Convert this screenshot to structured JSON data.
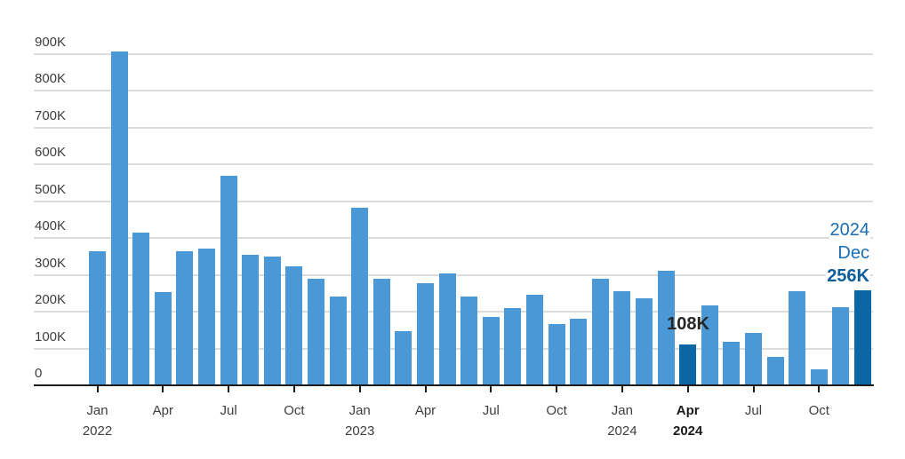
{
  "chart_data": {
    "type": "bar",
    "title": "",
    "unit": "thousands (K)",
    "grid": true,
    "ylim": [
      0,
      900
    ],
    "categories": [
      "Jan 2022",
      "Feb 2022",
      "Mar 2022",
      "Apr 2022",
      "May 2022",
      "Jun 2022",
      "Jul 2022",
      "Aug 2022",
      "Sep 2022",
      "Oct 2022",
      "Nov 2022",
      "Dec 2022",
      "Jan 2023",
      "Feb 2023",
      "Mar 2023",
      "Apr 2023",
      "May 2023",
      "Jun 2023",
      "Jul 2023",
      "Aug 2023",
      "Sep 2023",
      "Oct 2023",
      "Nov 2023",
      "Dec 2023",
      "Jan 2024",
      "Feb 2024",
      "Mar 2024",
      "Apr 2024",
      "May 2024",
      "Jun 2024",
      "Jul 2024",
      "Aug 2024",
      "Sep 2024",
      "Oct 2024",
      "Nov 2024",
      "Dec 2024"
    ],
    "values": [
      361,
      905,
      413,
      251,
      362,
      369,
      566,
      352,
      348,
      320,
      288,
      238,
      481,
      286,
      145,
      276,
      302,
      239,
      183,
      208,
      243,
      163,
      179,
      288,
      254,
      234,
      309,
      108,
      215,
      115,
      141,
      75,
      254,
      41,
      211,
      256
    ],
    "highlighted_indices": [
      27,
      35
    ],
    "yticks": [
      {
        "label": "0",
        "value": 0
      },
      {
        "label": "100K",
        "value": 100
      },
      {
        "label": "200K",
        "value": 200
      },
      {
        "label": "300K",
        "value": 300
      },
      {
        "label": "400K",
        "value": 400
      },
      {
        "label": "500K",
        "value": 500
      },
      {
        "label": "600K",
        "value": 600
      },
      {
        "label": "700K",
        "value": 700
      },
      {
        "label": "800K",
        "value": 800
      },
      {
        "label": "900K",
        "value": 900
      }
    ],
    "xticks": [
      {
        "index": 0,
        "line1": "Jan",
        "line2": "2022",
        "bold": false
      },
      {
        "index": 3,
        "line1": "Apr",
        "line2": "",
        "bold": false
      },
      {
        "index": 6,
        "line1": "Jul",
        "line2": "",
        "bold": false
      },
      {
        "index": 9,
        "line1": "Oct",
        "line2": "",
        "bold": false
      },
      {
        "index": 12,
        "line1": "Jan",
        "line2": "2023",
        "bold": false
      },
      {
        "index": 15,
        "line1": "Apr",
        "line2": "",
        "bold": false
      },
      {
        "index": 18,
        "line1": "Jul",
        "line2": "",
        "bold": false
      },
      {
        "index": 21,
        "line1": "Oct",
        "line2": "",
        "bold": false
      },
      {
        "index": 24,
        "line1": "Jan",
        "line2": "2024",
        "bold": false
      },
      {
        "index": 27,
        "line1": "Apr",
        "line2": "2024",
        "bold": true
      },
      {
        "index": 30,
        "line1": "Jul",
        "line2": "",
        "bold": false
      },
      {
        "index": 33,
        "line1": "Oct",
        "line2": "",
        "bold": false
      }
    ],
    "annotations": {
      "bar_108k": {
        "text": "108K",
        "bar_index": 27
      },
      "dec_2024": {
        "lines": [
          "2024",
          "Dec",
          "256K"
        ],
        "bar_index": 35
      }
    },
    "legend": "none",
    "colors": {
      "bar": "#4a98d5",
      "bar_highlight": "#0a66a4",
      "grid": "#dcdcdc",
      "axis": "#1c1c1c",
      "axis_text": "#3e3e3e",
      "axis_text_bold": "#1c1c1c",
      "annotation_dark": "#262626",
      "annotation_blue": "#1a6db3",
      "annotation_blue_bold": "#0c5d99"
    }
  }
}
